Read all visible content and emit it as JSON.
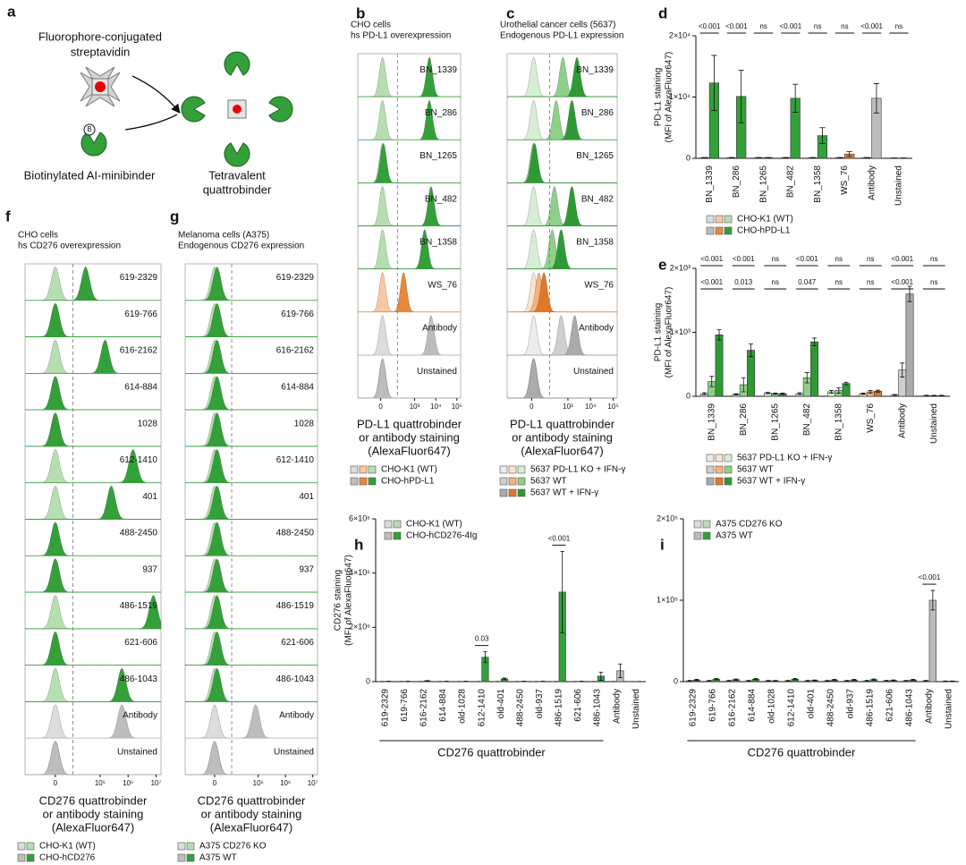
{
  "panel_a": {
    "letter": "a",
    "streptavidin": [
      "Fluorophore-conjugated",
      "streptavidin"
    ],
    "biotin": "B",
    "minibinder": "Biotinylated AI-minibinder",
    "quattrobinder": [
      "Tetravalent",
      "quattrobinder"
    ]
  },
  "chart_data": [
    {
      "type": "ridgeline",
      "panel": "b",
      "title": [
        "CHO cells",
        "hs PD-L1 overexpression"
      ],
      "categories": [
        "BN_1339",
        "BN_286",
        "BN_1265",
        "BN_482",
        "BN_1358",
        "WS_76",
        "Antibody",
        "Unstained"
      ],
      "series": [
        {
          "name": "CHO-K1 (WT)",
          "values": [
            10,
            10,
            10,
            10,
            10,
            10,
            10,
            10
          ],
          "colors": [
            "#b7deb1",
            "#b7deb1",
            "#b7deb1",
            "#b7deb1",
            "#b7deb1",
            "#f7c9a1",
            "#dcdcdc",
            "#dcdcdc"
          ]
        },
        {
          "name": "CHO-hPD-L1",
          "values": [
            5000,
            5000,
            15,
            6000,
            3000,
            300,
            6000,
            10
          ],
          "colors": [
            "#34a03a",
            "#34a03a",
            "#34a03a",
            "#34a03a",
            "#34a03a",
            "#e8893a",
            "#bdbdbd",
            "#bdbdbd"
          ]
        }
      ],
      "xscale": "biexponential",
      "xlim": [
        -300,
        150000
      ],
      "xticks": [
        0,
        {
          "value": 1000,
          "label": "10³"
        },
        {
          "value": 10000,
          "label": "10⁴"
        },
        {
          "value": 100000,
          "label": "10⁵"
        }
      ],
      "gate": 150,
      "xlabel": [
        "PD-L1 quattrobinder",
        "or antibody staining",
        "(AlexaFluor647)"
      ]
    },
    {
      "type": "ridgeline",
      "panel": "c",
      "title": [
        "Urothelial cancer cells (5637)",
        "Endogenous PD-L1 expression"
      ],
      "categories": [
        "BN_1339",
        "BN_286",
        "BN_1265",
        "BN_482",
        "BN_1358",
        "WS_76",
        "Antibody",
        "Unstained"
      ],
      "series": [
        {
          "name": "5637 PD-L1 KO + IFN-γ",
          "values": [
            10,
            10,
            10,
            10,
            10,
            10,
            10,
            10
          ],
          "colors": [
            "#d6efd2",
            "#d6efd2",
            "#d6efd2",
            "#d6efd2",
            "#d6efd2",
            "#fbe3cf",
            "#ececec",
            "#ececec"
          ]
        },
        {
          "name": "5637 WT",
          "values": [
            600,
            300,
            10,
            250,
            200,
            40,
            500,
            10
          ],
          "colors": [
            "#8fd088",
            "#8fd088",
            "#8fd088",
            "#8fd088",
            "#8fd088",
            "#f4b47f",
            "#cfcfcf",
            "#cfcfcf"
          ]
        },
        {
          "name": "5637 WT + IFN-γ",
          "values": [
            2500,
            1500,
            15,
            1500,
            500,
            80,
            2000,
            10
          ],
          "colors": [
            "#2f9a35",
            "#2f9a35",
            "#2f9a35",
            "#2f9a35",
            "#2f9a35",
            "#e0782a",
            "#ababab",
            "#ababab"
          ]
        }
      ],
      "xscale": "biexponential",
      "xlim": [
        -300,
        150000
      ],
      "xticks": [
        0,
        {
          "value": 1000,
          "label": "10³"
        },
        {
          "value": 10000,
          "label": "10⁴"
        },
        {
          "value": 100000,
          "label": "10⁵"
        }
      ],
      "gate": 150,
      "xlabel": [
        "PD-L1 quattrobinder",
        "or antibody staining",
        "(AlexaFluor647)"
      ]
    },
    {
      "type": "bar",
      "panel": "d",
      "ylabel": [
        "PD-L1 staining",
        "(MFI of AlexaFluor647)"
      ],
      "categories": [
        "BN_1339",
        "BN_286",
        "BN_1265",
        "BN_482",
        "BN_1358",
        "WS_76",
        "Antibody",
        "Unstained"
      ],
      "series": [
        {
          "name": "CHO-K1 (WT)",
          "values": [
            100,
            100,
            100,
            100,
            100,
            100,
            100,
            50
          ],
          "errors": [
            50,
            50,
            50,
            50,
            50,
            50,
            50,
            20
          ],
          "colors": [
            "#b7deb1",
            "#b7deb1",
            "#b7deb1",
            "#b7deb1",
            "#b7deb1",
            "#f7c9a1",
            "#dcdcdc",
            "#dcdcdc"
          ]
        },
        {
          "name": "CHO-hPD-L1",
          "values": [
            12300,
            10100,
            100,
            9800,
            3700,
            700,
            9800,
            50
          ],
          "errors": [
            4500,
            4300,
            50,
            2300,
            1300,
            400,
            2400,
            20
          ],
          "colors": [
            "#34a03a",
            "#34a03a",
            "#34a03a",
            "#34a03a",
            "#34a03a",
            "#e8893a",
            "#bdbdbd",
            "#bdbdbd"
          ]
        }
      ],
      "ylim": [
        0,
        20000
      ],
      "yticks": [
        0,
        {
          "value": 10000,
          "label": "1×10⁴"
        },
        {
          "value": 20000,
          "label": "2×10⁴"
        }
      ],
      "sig": [
        [
          "<0.001",
          "<0.001",
          "ns",
          "<0.001",
          "ns",
          "ns",
          "<0.001",
          "ns"
        ]
      ],
      "legend": "below"
    },
    {
      "type": "bar",
      "panel": "e",
      "ylabel": [
        "PD-L1 staining",
        "(MFI of AlexaFluor647)"
      ],
      "categories": [
        "BN_1339",
        "BN_286",
        "BN_1265",
        "BN_482",
        "BN_1358",
        "WS_76",
        "Antibody",
        "Unstained"
      ],
      "series": [
        {
          "name": "5637 PD-L1 KO + IFN-γ",
          "values": [
            40,
            30,
            50,
            40,
            70,
            40,
            20,
            10
          ],
          "errors": [
            15,
            10,
            10,
            15,
            20,
            10,
            10,
            5
          ],
          "colors": [
            "#d6efd2",
            "#d6efd2",
            "#d6efd2",
            "#d6efd2",
            "#d6efd2",
            "#fbe3cf",
            "#ececec",
            "#ececec"
          ]
        },
        {
          "name": "5637 WT",
          "values": [
            230,
            180,
            40,
            290,
            90,
            70,
            410,
            10
          ],
          "errors": [
            80,
            110,
            10,
            80,
            40,
            20,
            110,
            5
          ],
          "colors": [
            "#8fd088",
            "#8fd088",
            "#8fd088",
            "#8fd088",
            "#8fd088",
            "#f4b47f",
            "#cfcfcf",
            "#cfcfcf"
          ]
        },
        {
          "name": "5637 WT + IFN-γ",
          "values": [
            960,
            720,
            40,
            850,
            200,
            80,
            1600,
            10
          ],
          "errors": [
            80,
            100,
            10,
            60,
            20,
            15,
            120,
            5
          ],
          "colors": [
            "#2f9a35",
            "#2f9a35",
            "#2f9a35",
            "#2f9a35",
            "#2f9a35",
            "#e0782a",
            "#ababab",
            "#ababab"
          ]
        }
      ],
      "ylim": [
        0,
        2000
      ],
      "yticks": [
        0,
        {
          "value": 1000,
          "label": "1×10³"
        },
        {
          "value": 2000,
          "label": "2×10³"
        }
      ],
      "sig": [
        [
          "<0.001",
          "<0.001",
          "ns",
          "<0.001",
          "ns",
          "ns",
          "<0.001",
          "ns"
        ],
        [
          "<0.001",
          "0.013",
          "ns",
          "0.047",
          "ns",
          "ns",
          "<0.001",
          "ns"
        ]
      ],
      "legend": "below"
    },
    {
      "type": "ridgeline",
      "panel": "f",
      "title": [
        "CHO cells",
        "hs CD276 overexpression"
      ],
      "categories": [
        "619-2329",
        "619-766",
        "616-2162",
        "614-884",
        "1028",
        "612-1410",
        "401",
        "488-2450",
        "937",
        "486-1519",
        "621-606",
        "486-1043",
        "Antibody",
        "Unstained"
      ],
      "series": [
        {
          "name": "CHO-K1 (WT)",
          "values": [
            0,
            0,
            0,
            0,
            0,
            0,
            0,
            0,
            0,
            0,
            0,
            0,
            0,
            0
          ],
          "colors": [
            "#b7deb1",
            "#b7deb1",
            "#b7deb1",
            "#b7deb1",
            "#b7deb1",
            "#b7deb1",
            "#b7deb1",
            "#b7deb1",
            "#b7deb1",
            "#b7deb1",
            "#b7deb1",
            "#b7deb1",
            "#dcdcdc",
            "#dcdcdc"
          ]
        },
        {
          "name": "CHO-hCD276",
          "values": [
            30000,
            0,
            150000,
            0,
            0,
            1500000,
            250000,
            0,
            0,
            8000000,
            0,
            600000,
            600000,
            0
          ],
          "colors": [
            "#34a03a",
            "#34a03a",
            "#34a03a",
            "#34a03a",
            "#34a03a",
            "#34a03a",
            "#34a03a",
            "#34a03a",
            "#34a03a",
            "#34a03a",
            "#34a03a",
            "#34a03a",
            "#bdbdbd",
            "#bdbdbd"
          ]
        }
      ],
      "xscale": "biexponential",
      "xlim": [
        -30000,
        15000000
      ],
      "xticks": [
        0,
        {
          "value": 100000,
          "label": "10⁵"
        },
        {
          "value": 1000000,
          "label": "10⁶"
        },
        {
          "value": 10000000,
          "label": "10⁷"
        }
      ],
      "gate": 10000,
      "xlabel": [
        "CD276 quattrobinder",
        "or antibody staining",
        "(AlexaFluor647)"
      ]
    },
    {
      "type": "ridgeline",
      "panel": "g",
      "title": [
        "Melanoma cells (A375)",
        "Endogenous CD276 expression"
      ],
      "categories": [
        "619-2329",
        "619-766",
        "616-2162",
        "614-884",
        "1028",
        "612-1410",
        "401",
        "488-2450",
        "937",
        "486-1519",
        "621-606",
        "486-1043",
        "Antibody",
        "Unstained"
      ],
      "series": [
        {
          "name": "A375 CD276 KO",
          "values": [
            0,
            0,
            0,
            0,
            0,
            0,
            0,
            0,
            0,
            0,
            0,
            0,
            0,
            0
          ],
          "colors": [
            "#b7deb1",
            "#b7deb1",
            "#b7deb1",
            "#b7deb1",
            "#b7deb1",
            "#b7deb1",
            "#b7deb1",
            "#b7deb1",
            "#b7deb1",
            "#b7deb1",
            "#b7deb1",
            "#b7deb1",
            "#dcdcdc",
            "#dcdcdc"
          ]
        },
        {
          "name": "A375 WT",
          "values": [
            1000,
            1000,
            1000,
            1000,
            1000,
            1000,
            1000,
            1000,
            1000,
            1000,
            1000,
            1000,
            80000,
            0
          ],
          "colors": [
            "#34a03a",
            "#34a03a",
            "#34a03a",
            "#34a03a",
            "#34a03a",
            "#34a03a",
            "#34a03a",
            "#34a03a",
            "#34a03a",
            "#34a03a",
            "#34a03a",
            "#34a03a",
            "#bdbdbd",
            "#bdbdbd"
          ]
        }
      ],
      "xscale": "biexponential",
      "xlim": [
        -30000,
        15000000
      ],
      "xticks": [
        0,
        {
          "value": 100000,
          "label": "10⁵"
        },
        {
          "value": 1000000,
          "label": "10⁶"
        },
        {
          "value": 10000000,
          "label": "10⁷"
        }
      ],
      "gate": 10000,
      "xlabel": [
        "CD276 quattrobinder",
        "or antibody staining",
        "(AlexaFluor647)"
      ]
    },
    {
      "type": "bar",
      "panel": "h",
      "ylabel": [
        "CD276 staining",
        "(MFI of AlexaFluor647)"
      ],
      "xlabel": "CD276 quattrobinder",
      "categories": [
        "619-2329",
        "619-766",
        "616-2162",
        "614-884",
        "old-1028",
        "612-1410",
        "old-401",
        "488-2450",
        "old-937",
        "486-1519",
        "621-606",
        "486-1043",
        "Antibody",
        "Unstained"
      ],
      "series": [
        {
          "name": "CHO-K1 (WT)",
          "values": [
            5000,
            5000,
            5000,
            5000,
            5000,
            5000,
            5000,
            5000,
            5000,
            5000,
            5000,
            5000,
            5000,
            2000
          ],
          "errors": [
            3000,
            3000,
            3000,
            3000,
            3000,
            3000,
            3000,
            3000,
            3000,
            3000,
            3000,
            3000,
            3000,
            1000
          ],
          "colors": [
            "#b7deb1",
            "#b7deb1",
            "#b7deb1",
            "#b7deb1",
            "#b7deb1",
            "#b7deb1",
            "#b7deb1",
            "#b7deb1",
            "#b7deb1",
            "#b7deb1",
            "#b7deb1",
            "#b7deb1",
            "#dcdcdc",
            "#dcdcdc"
          ]
        },
        {
          "name": "CHO-hCD276-4Ig",
          "values": [
            10000,
            10000,
            30000,
            10000,
            10000,
            900000,
            100000,
            10000,
            10000,
            3300000,
            10000,
            200000,
            400000,
            5000
          ],
          "errors": [
            5000,
            5000,
            10000,
            5000,
            5000,
            200000,
            30000,
            5000,
            5000,
            1500000,
            5000,
            150000,
            250000,
            2000
          ],
          "colors": [
            "#34a03a",
            "#34a03a",
            "#34a03a",
            "#34a03a",
            "#34a03a",
            "#34a03a",
            "#34a03a",
            "#34a03a",
            "#34a03a",
            "#34a03a",
            "#34a03a",
            "#34a03a",
            "#bdbdbd",
            "#bdbdbd"
          ]
        }
      ],
      "ylim": [
        0,
        6000000
      ],
      "yticks": [
        0,
        {
          "value": 2000000,
          "label": "2×10⁶"
        },
        {
          "value": 4000000,
          "label": "4×10⁶"
        },
        {
          "value": 6000000,
          "label": "6×10⁶"
        }
      ],
      "sig": [
        [
          null,
          null,
          null,
          null,
          null,
          "0.03",
          null,
          null,
          null,
          "<0.001",
          null,
          null,
          null,
          null
        ]
      ],
      "legend": "upper left"
    },
    {
      "type": "bar",
      "panel": "i",
      "xlabel": "CD276 quattrobinder",
      "categories": [
        "619-2329",
        "619-766",
        "616-2162",
        "614-884",
        "old-1028",
        "612-1410",
        "old-401",
        "488-2450",
        "old-937",
        "486-1519",
        "621-606",
        "486-1043",
        "Antibody",
        "Unstained"
      ],
      "series": [
        {
          "name": "A375 CD276 KO",
          "values": [
            1000,
            1000,
            1000,
            1000,
            1000,
            1000,
            1000,
            1000,
            1000,
            1000,
            1000,
            1000,
            1000,
            500
          ],
          "errors": [
            500,
            500,
            500,
            500,
            500,
            500,
            500,
            500,
            500,
            500,
            500,
            500,
            500,
            300
          ],
          "colors": [
            "#b7deb1",
            "#b7deb1",
            "#b7deb1",
            "#b7deb1",
            "#b7deb1",
            "#b7deb1",
            "#b7deb1",
            "#b7deb1",
            "#b7deb1",
            "#b7deb1",
            "#b7deb1",
            "#b7deb1",
            "#dcdcdc",
            "#dcdcdc"
          ]
        },
        {
          "name": "A375 WT",
          "values": [
            2000,
            3000,
            2500,
            3000,
            1000,
            3000,
            1500,
            2000,
            2000,
            2500,
            1500,
            2000,
            100000,
            500
          ],
          "errors": [
            800,
            800,
            800,
            800,
            500,
            800,
            500,
            800,
            800,
            800,
            500,
            800,
            12000,
            300
          ],
          "colors": [
            "#34a03a",
            "#34a03a",
            "#34a03a",
            "#34a03a",
            "#34a03a",
            "#34a03a",
            "#34a03a",
            "#34a03a",
            "#34a03a",
            "#34a03a",
            "#34a03a",
            "#34a03a",
            "#bdbdbd",
            "#bdbdbd"
          ]
        }
      ],
      "ylim": [
        0,
        200000
      ],
      "yticks": [
        0,
        {
          "value": 100000,
          "label": "1×10⁵"
        },
        {
          "value": 200000,
          "label": "2×10⁵"
        }
      ],
      "sig": [
        [
          null,
          null,
          null,
          null,
          null,
          null,
          null,
          null,
          null,
          null,
          null,
          null,
          "<0.001",
          null
        ]
      ],
      "legend": "upper left"
    }
  ]
}
